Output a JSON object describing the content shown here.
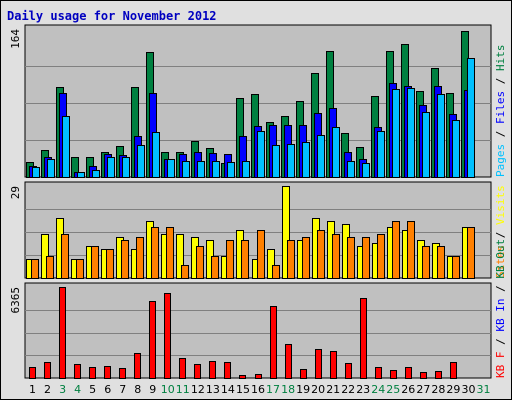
{
  "chart_data": {
    "type": "bar",
    "title": "Daily usage for November 2012",
    "categories": [
      "1",
      "2",
      "3",
      "4",
      "5",
      "6",
      "7",
      "8",
      "9",
      "10",
      "11",
      "12",
      "13",
      "14",
      "15",
      "16",
      "17",
      "18",
      "19",
      "20",
      "21",
      "22",
      "23",
      "24",
      "25",
      "26",
      "27",
      "28",
      "29",
      "30",
      "31"
    ],
    "weekend_days": [
      "3",
      "4",
      "10",
      "11",
      "17",
      "18",
      "24",
      "25",
      "31"
    ],
    "colors": {
      "hits": "#008040",
      "files": "#0000ff",
      "pages": "#00c0ff",
      "visits": "#ffff00",
      "sites": "#ff8000",
      "kb_f": "#ff0000",
      "weekend_label": "#008040",
      "weekday_label": "#000000",
      "title": "#0000c0",
      "plot_bg": "#c0c0c0"
    },
    "panels": [
      {
        "id": "hits-files-pages",
        "ymax_label": "164",
        "ylim": [
          0,
          164
        ],
        "legend": [
          {
            "text": "Pages",
            "color": "#00c0ff"
          },
          {
            "text": " / ",
            "color": "#000000"
          },
          {
            "text": "Files",
            "color": "#0000ff"
          },
          {
            "text": " / ",
            "color": "#000000"
          },
          {
            "text": "Hits",
            "color": "#008040"
          }
        ],
        "series": [
          {
            "name": "Hits",
            "color": "#008040",
            "values": [
              17,
              30,
              100,
              22,
              22,
              28,
              34,
              100,
              138,
              28,
              28,
              40,
              32,
              16,
              87,
              92,
              61,
              68,
              84,
              115,
              140,
              49,
              33,
              90,
              140,
              147,
              95,
              121,
              93,
              162
            ]
          },
          {
            "name": "Files",
            "color": "#0000ff",
            "values": [
              12,
              22,
              93,
              6,
              12,
              26,
              24,
              45,
              93,
              20,
              25,
              28,
              27,
              25,
              45,
              57,
              58,
              58,
              58,
              71,
              76,
              28,
              20,
              55,
              104,
              101,
              80,
              101,
              70,
              96
            ]
          },
          {
            "name": "Pages",
            "color": "#00c0ff",
            "values": [
              11,
              20,
              68,
              6,
              8,
              22,
              22,
              36,
              50,
              20,
              18,
              18,
              18,
              17,
              18,
              51,
              36,
              37,
              39,
              47,
              55,
              18,
              15,
              51,
              98,
              99,
              72,
              92,
              63,
              132
            ]
          }
        ]
      },
      {
        "id": "visits-sites",
        "ymax_label": "29",
        "ylim": [
          0,
          29
        ],
        "legend": [
          {
            "text": "Sites",
            "color": "#ff8000"
          },
          {
            "text": " / ",
            "color": "#000000"
          },
          {
            "text": "Visits",
            "color": "#ffff00"
          }
        ],
        "series": [
          {
            "name": "Visits",
            "color": "#ffff00",
            "values": [
              6,
              14,
              19,
              6,
              10,
              9,
              13,
              9,
              18,
              14,
              14,
              13,
              12,
              7,
              15,
              6,
              9,
              29,
              12,
              19,
              18,
              17,
              10,
              11,
              16,
              15,
              12,
              11,
              7,
              16
            ]
          },
          {
            "name": "Sites",
            "color": "#ff8000",
            "values": [
              6,
              7,
              14,
              6,
              10,
              9,
              12,
              13,
              16,
              16,
              4,
              10,
              7,
              12,
              12,
              15,
              4,
              12,
              13,
              15,
              14,
              13,
              13,
              14,
              18,
              18,
              10,
              10,
              7,
              16
            ]
          }
        ]
      },
      {
        "id": "kb-f-in-out",
        "ymax_label": "6365",
        "ylim": [
          0,
          6365
        ],
        "legend": [
          {
            "text": "KB F",
            "color": "#ff0000"
          },
          {
            "text": " / ",
            "color": "#000000"
          },
          {
            "text": "KB In",
            "color": "#0000ff"
          },
          {
            "text": " / ",
            "color": "#000000"
          },
          {
            "text": "KB Out",
            "color": "#008040"
          }
        ],
        "series": [
          {
            "name": "KB F",
            "color": "#ff0000",
            "values": [
              770,
              1150,
              6400,
              980,
              760,
              820,
              680,
              1760,
              5360,
              5960,
              1380,
              1010,
              1220,
              1150,
              210,
              300,
              5060,
              2410,
              600,
              2050,
              1920,
              1020,
              5620,
              770,
              580,
              790,
              420,
              470,
              1150,
              0
            ]
          }
        ]
      }
    ]
  }
}
